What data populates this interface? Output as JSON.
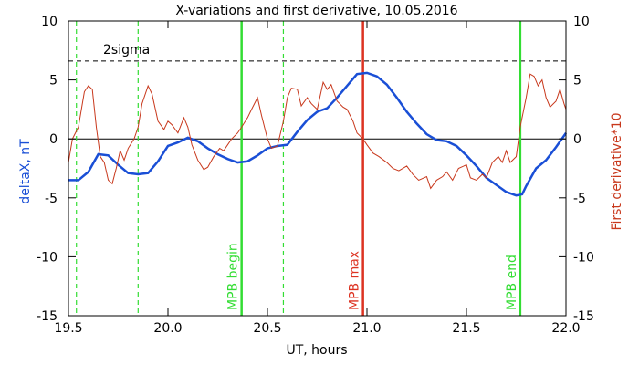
{
  "chart_data": {
    "type": "line",
    "title": "X-variations and first derivative, 10.05.2016",
    "xlabel": "UT, hours",
    "ylabel": "deltaX, nT",
    "y2label": "First derivative*10",
    "xlim": [
      19.5,
      22.0
    ],
    "xticks": [
      19.5,
      {
        "value": 20,
        "label": "20.0"
      },
      20.5,
      {
        "value": 21,
        "label": "21.0"
      },
      21.5,
      {
        "value": 22,
        "label": "22.0"
      }
    ],
    "ylim": [
      -15,
      10
    ],
    "yticks": [
      -15,
      -10,
      -5,
      0,
      5,
      10
    ],
    "y2lim": [
      -15,
      10
    ],
    "y2ticks": [
      -15,
      -10,
      -5,
      0,
      5,
      10
    ],
    "ylabel_color": "#1a4fd6",
    "y2label_color": "#c8381c",
    "series": [
      {
        "name": "deltaX",
        "color": "#1a4fd6",
        "x": [
          19.5,
          19.55,
          19.6,
          19.65,
          19.7,
          19.75,
          19.8,
          19.85,
          19.9,
          19.95,
          20.0,
          20.05,
          20.1,
          20.15,
          20.2,
          20.25,
          20.3,
          20.35,
          20.4,
          20.45,
          20.5,
          20.55,
          20.6,
          20.65,
          20.7,
          20.75,
          20.8,
          20.85,
          20.9,
          20.95,
          21.0,
          21.05,
          21.1,
          21.15,
          21.2,
          21.25,
          21.3,
          21.35,
          21.4,
          21.45,
          21.5,
          21.55,
          21.6,
          21.65,
          21.7,
          21.75,
          21.78,
          21.8,
          21.85,
          21.9,
          21.95,
          22.0
        ],
        "values": [
          -3.5,
          -3.5,
          -2.8,
          -1.3,
          -1.4,
          -2.2,
          -2.9,
          -3.0,
          -2.9,
          -1.9,
          -0.6,
          -0.3,
          0.1,
          -0.2,
          -0.8,
          -1.3,
          -1.7,
          -2.0,
          -1.9,
          -1.4,
          -0.8,
          -0.6,
          -0.5,
          0.6,
          1.6,
          2.3,
          2.6,
          3.5,
          4.5,
          5.5,
          5.6,
          5.3,
          4.6,
          3.5,
          2.3,
          1.3,
          0.4,
          -0.1,
          -0.2,
          -0.6,
          -1.4,
          -2.3,
          -3.3,
          -3.9,
          -4.5,
          -4.8,
          -4.7,
          -4.0,
          -2.5,
          -1.8,
          -0.7,
          0.5
        ]
      },
      {
        "name": "First derivative*10",
        "color": "#c8381c",
        "axis": "y2",
        "x": [
          19.5,
          19.52,
          19.55,
          19.58,
          19.6,
          19.62,
          19.64,
          19.66,
          19.68,
          19.7,
          19.72,
          19.74,
          19.76,
          19.78,
          19.8,
          19.83,
          19.85,
          19.87,
          19.9,
          19.92,
          19.95,
          19.98,
          20.0,
          20.02,
          20.05,
          20.08,
          20.1,
          20.12,
          20.15,
          20.18,
          20.2,
          20.23,
          20.26,
          20.28,
          20.3,
          20.32,
          20.35,
          20.37,
          20.4,
          20.42,
          20.45,
          20.47,
          20.5,
          20.52,
          20.55,
          20.58,
          20.6,
          20.62,
          20.65,
          20.67,
          20.7,
          20.72,
          20.75,
          20.78,
          20.8,
          20.82,
          20.85,
          20.88,
          20.9,
          20.93,
          20.95,
          20.98,
          21.0,
          21.03,
          21.06,
          21.1,
          21.13,
          21.16,
          21.2,
          21.23,
          21.26,
          21.3,
          21.32,
          21.35,
          21.38,
          21.4,
          21.43,
          21.46,
          21.5,
          21.52,
          21.55,
          21.58,
          21.6,
          21.63,
          21.66,
          21.68,
          21.7,
          21.72,
          21.75,
          21.77,
          21.8,
          21.82,
          21.84,
          21.86,
          21.88,
          21.9,
          21.92,
          21.95,
          21.97,
          21.99,
          22.0
        ],
        "values": [
          -2,
          0,
          1,
          4,
          4.5,
          4.2,
          1,
          -1.5,
          -2,
          -3.5,
          -3.8,
          -2.5,
          -1,
          -1.8,
          -0.8,
          0,
          1,
          3,
          4.5,
          3.8,
          1.5,
          0.8,
          1.5,
          1.2,
          0.5,
          1.8,
          1.0,
          -0.5,
          -1.8,
          -2.6,
          -2.4,
          -1.5,
          -0.8,
          -1,
          -0.5,
          0,
          0.5,
          1,
          1.8,
          2.5,
          3.5,
          2,
          0,
          -0.8,
          -0.6,
          1.5,
          3.5,
          4.3,
          4.2,
          2.8,
          3.5,
          3,
          2.5,
          4.8,
          4.2,
          4.6,
          3.2,
          2.7,
          2.5,
          1.5,
          0.5,
          0,
          -0.5,
          -1.2,
          -1.5,
          -2,
          -2.5,
          -2.7,
          -2.3,
          -3,
          -3.5,
          -3.2,
          -4.2,
          -3.5,
          -3.2,
          -2.8,
          -3.5,
          -2.5,
          -2.2,
          -3.3,
          -3.5,
          -3.0,
          -3.3,
          -2.0,
          -1.5,
          -2,
          -1,
          -2,
          -1.5,
          1,
          3.5,
          5.5,
          5.3,
          4.5,
          5,
          3.5,
          2.7,
          3.2,
          4.2,
          3.0,
          2.5
        ]
      }
    ],
    "vlines": [
      {
        "x": 19.54,
        "color": "#33dd33",
        "style": "dashed"
      },
      {
        "x": 19.85,
        "color": "#33dd33",
        "style": "dashed"
      },
      {
        "x": 20.37,
        "color": "#33dd33",
        "style": "solid",
        "label": "MPB begin"
      },
      {
        "x": 20.58,
        "color": "#33dd33",
        "style": "dashed"
      },
      {
        "x": 20.98,
        "color": "#dd3322",
        "style": "solid",
        "label": "MPB max"
      },
      {
        "x": 21.77,
        "color": "#33dd33",
        "style": "solid",
        "label": "MPB end"
      }
    ],
    "hlines": [
      {
        "y": 0,
        "color": "#000000",
        "style": "solid"
      },
      {
        "y": 6.6,
        "color": "#000000",
        "style": "dashed",
        "label": "2sigma"
      }
    ]
  }
}
